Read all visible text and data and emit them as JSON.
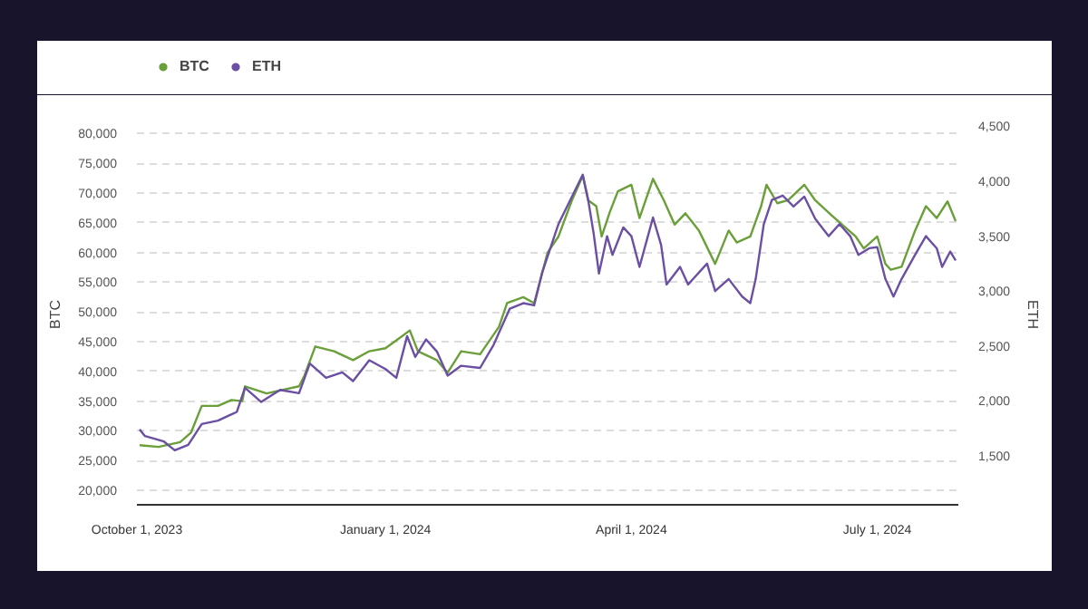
{
  "chart_data": {
    "type": "line",
    "ylabel": "BTC",
    "y2label": "ETH",
    "legend": "top left",
    "grid": "y",
    "marker": "none",
    "line_style": "solid",
    "xlim": [
      "2023-10-01",
      "2024-07-31"
    ],
    "xticks": [
      {
        "value": "2023-10-01",
        "label": "October 1, 2023"
      },
      {
        "value": "2024-01-01",
        "label": "January 1, 2024"
      },
      {
        "value": "2024-04-01",
        "label": "April 1, 2024"
      },
      {
        "value": "2024-07-01",
        "label": "July 1, 2024"
      }
    ],
    "ylim": [
      17570,
      81600
    ],
    "yticks": [
      {
        "value": 20000,
        "label": "20,000"
      },
      {
        "value": 25000,
        "label": "25,000"
      },
      {
        "value": 30000,
        "label": "30,000"
      },
      {
        "value": 35000,
        "label": "35,000"
      },
      {
        "value": 40000,
        "label": "40,000"
      },
      {
        "value": 45000,
        "label": "45,000"
      },
      {
        "value": 50000,
        "label": "50,000"
      },
      {
        "value": 55000,
        "label": "55,000"
      },
      {
        "value": 60000,
        "label": "60,000"
      },
      {
        "value": 65000,
        "label": "65,000"
      },
      {
        "value": 70000,
        "label": "70,000"
      },
      {
        "value": 75000,
        "label": "75,000"
      },
      {
        "value": 80000,
        "label": "80,000"
      }
    ],
    "y2lim": [
      1054,
      4520
    ],
    "y2ticks": [
      {
        "value": 1500,
        "label": "1,500"
      },
      {
        "value": 2000,
        "label": "2,000"
      },
      {
        "value": 2500,
        "label": "2,500"
      },
      {
        "value": 3000,
        "label": "3,000"
      },
      {
        "value": 3500,
        "label": "3,500"
      },
      {
        "value": 4000,
        "label": "4,000"
      },
      {
        "value": 4500,
        "label": "4,500"
      }
    ],
    "series": [
      {
        "name": "BTC",
        "color": "#6a9f3a",
        "x": [
          "2023-10-02",
          "2023-10-09",
          "2023-10-17",
          "2023-10-21",
          "2023-10-25",
          "2023-10-31",
          "2023-11-05",
          "2023-11-09",
          "2023-11-10",
          "2023-11-18",
          "2023-11-30",
          "2023-12-02",
          "2023-12-06",
          "2023-12-13",
          "2023-12-20",
          "2023-12-26",
          "2024-01-01",
          "2024-01-07",
          "2024-01-10",
          "2024-01-13",
          "2024-01-20",
          "2024-01-24",
          "2024-01-29",
          "2024-02-05",
          "2024-02-12",
          "2024-02-15",
          "2024-02-21",
          "2024-02-25",
          "2024-03-01",
          "2024-03-05",
          "2024-03-10",
          "2024-03-14",
          "2024-03-16",
          "2024-03-19",
          "2024-03-21",
          "2024-03-24",
          "2024-03-27",
          "2024-04-01",
          "2024-04-04",
          "2024-04-09",
          "2024-04-13",
          "2024-04-17",
          "2024-04-21",
          "2024-04-26",
          "2024-05-02",
          "2024-05-07",
          "2024-05-10",
          "2024-05-15",
          "2024-05-19",
          "2024-05-21",
          "2024-05-25",
          "2024-05-29",
          "2024-06-04",
          "2024-06-08",
          "2024-06-14",
          "2024-06-18",
          "2024-06-23",
          "2024-06-26",
          "2024-07-01",
          "2024-07-04",
          "2024-07-06",
          "2024-07-10",
          "2024-07-15",
          "2024-07-19",
          "2024-07-23",
          "2024-07-27",
          "2024-07-30"
        ],
        "values": [
          27600,
          27300,
          28100,
          29700,
          34200,
          34200,
          35200,
          35000,
          37500,
          36300,
          37500,
          39300,
          44200,
          43400,
          41900,
          43400,
          43900,
          45900,
          46900,
          43400,
          41900,
          39800,
          43400,
          42900,
          47500,
          51500,
          52500,
          51500,
          60000,
          62700,
          68800,
          72900,
          68800,
          67800,
          62700,
          66800,
          70300,
          71400,
          65800,
          72400,
          68800,
          64700,
          66600,
          63700,
          58100,
          63700,
          61700,
          62700,
          67800,
          71400,
          68300,
          68800,
          71400,
          68800,
          66300,
          64700,
          62700,
          60700,
          62700,
          58100,
          57100,
          57600,
          63700,
          67800,
          65800,
          68600,
          65300
        ]
      },
      {
        "name": "ETH",
        "color": "#6b4fa3",
        "axis": "y2",
        "x": [
          "2023-10-02",
          "2023-10-04",
          "2023-10-11",
          "2023-10-15",
          "2023-10-20",
          "2023-10-25",
          "2023-10-31",
          "2023-11-07",
          "2023-11-10",
          "2023-11-16",
          "2023-11-23",
          "2023-11-30",
          "2023-12-04",
          "2023-12-10",
          "2023-12-16",
          "2023-12-20",
          "2023-12-26",
          "2024-01-01",
          "2024-01-05",
          "2024-01-09",
          "2024-01-12",
          "2024-01-16",
          "2024-01-20",
          "2024-01-24",
          "2024-01-29",
          "2024-02-05",
          "2024-02-10",
          "2024-02-16",
          "2024-02-21",
          "2024-02-25",
          "2024-02-28",
          "2024-03-05",
          "2024-03-10",
          "2024-03-14",
          "2024-03-16",
          "2024-03-18",
          "2024-03-20",
          "2024-03-23",
          "2024-03-25",
          "2024-03-29",
          "2024-04-01",
          "2024-04-04",
          "2024-04-09",
          "2024-04-12",
          "2024-04-14",
          "2024-04-19",
          "2024-04-22",
          "2024-04-29",
          "2024-05-02",
          "2024-05-07",
          "2024-05-12",
          "2024-05-15",
          "2024-05-17",
          "2024-05-20",
          "2024-05-23",
          "2024-05-27",
          "2024-05-31",
          "2024-06-04",
          "2024-06-08",
          "2024-06-13",
          "2024-06-17",
          "2024-06-21",
          "2024-06-24",
          "2024-06-28",
          "2024-07-01",
          "2024-07-04",
          "2024-07-07",
          "2024-07-10",
          "2024-07-15",
          "2024-07-19",
          "2024-07-23",
          "2024-07-25",
          "2024-07-28",
          "2024-07-30"
        ],
        "values": [
          1740,
          1680,
          1630,
          1550,
          1600,
          1790,
          1820,
          1900,
          2120,
          1990,
          2100,
          2070,
          2340,
          2210,
          2260,
          2180,
          2370,
          2290,
          2210,
          2590,
          2400,
          2560,
          2450,
          2230,
          2320,
          2300,
          2510,
          2840,
          2890,
          2870,
          3170,
          3610,
          3860,
          4060,
          3830,
          3530,
          3160,
          3500,
          3330,
          3580,
          3500,
          3220,
          3670,
          3420,
          3060,
          3220,
          3060,
          3250,
          3000,
          3110,
          2950,
          2890,
          3110,
          3610,
          3830,
          3870,
          3770,
          3860,
          3660,
          3500,
          3610,
          3500,
          3330,
          3390,
          3400,
          3110,
          2950,
          3110,
          3330,
          3500,
          3390,
          3220,
          3360,
          3280
        ]
      }
    ]
  }
}
